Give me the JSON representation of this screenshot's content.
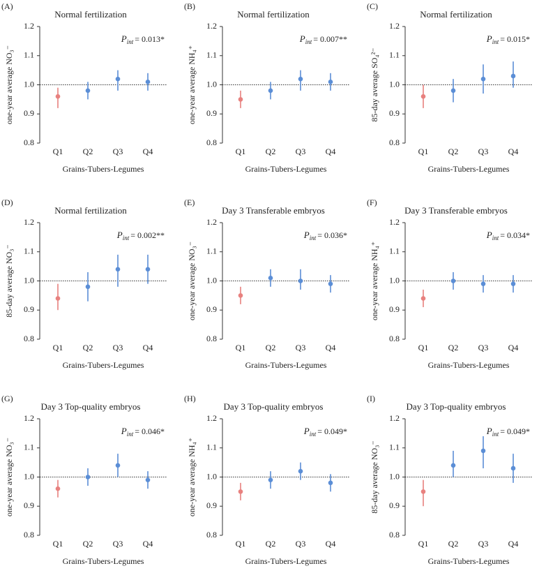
{
  "chart_data": [
    {
      "type": "errorbar",
      "panel": "(A)",
      "title": "Normal fertilization",
      "ylabel": "one-year average NO₃⁻",
      "xlabel": "Grains-Tubers-Legumes",
      "annotation": {
        "symbol": "P",
        "subscript": "int",
        "text": "= 0.013*"
      },
      "categories": [
        "Q1",
        "Q2",
        "Q3",
        "Q4"
      ],
      "values": [
        0.96,
        0.98,
        1.02,
        1.01
      ],
      "ci_low": [
        0.92,
        0.95,
        0.98,
        0.98
      ],
      "ci_high": [
        0.99,
        1.01,
        1.05,
        1.04
      ],
      "colors": [
        "#e8817f",
        "#5b8ed6",
        "#5b8ed6",
        "#5b8ed6"
      ],
      "ylim": [
        0.8,
        1.2
      ],
      "yticks": [
        0.8,
        0.9,
        {
          "value": 1,
          "label": "1.0"
        },
        1.1,
        1.2
      ],
      "ref_line": 1
    },
    {
      "type": "errorbar",
      "panel": "(B)",
      "title": "Normal fertilization",
      "ylabel": "one-year average NH₄⁺",
      "xlabel": "Grains-Tubers-Legumes",
      "annotation": {
        "symbol": "P",
        "subscript": "int",
        "text": "= 0.007**"
      },
      "categories": [
        "Q1",
        "Q2",
        "Q3",
        "Q4"
      ],
      "values": [
        0.95,
        0.98,
        1.02,
        1.01
      ],
      "ci_low": [
        0.92,
        0.95,
        0.98,
        0.98
      ],
      "ci_high": [
        0.98,
        1.01,
        1.05,
        1.04
      ],
      "colors": [
        "#e8817f",
        "#5b8ed6",
        "#5b8ed6",
        "#5b8ed6"
      ],
      "ylim": [
        0.8,
        1.2
      ],
      "yticks": [
        0.8,
        0.9,
        {
          "value": 1,
          "label": "1.0"
        },
        1.1,
        1.2
      ],
      "ref_line": 1
    },
    {
      "type": "errorbar",
      "panel": "(C)",
      "title": "Normal fertilization",
      "ylabel": "85-day average SO₄²⁻",
      "xlabel": "Grains-Tubers-Legumes",
      "annotation": {
        "symbol": "P",
        "subscript": "int",
        "text": "= 0.015*"
      },
      "categories": [
        "Q1",
        "Q2",
        "Q3",
        "Q4"
      ],
      "values": [
        0.96,
        0.98,
        1.02,
        1.03
      ],
      "ci_low": [
        0.92,
        0.94,
        0.97,
        0.99
      ],
      "ci_high": [
        1.0,
        1.02,
        1.07,
        1.08
      ],
      "colors": [
        "#e8817f",
        "#5b8ed6",
        "#5b8ed6",
        "#5b8ed6"
      ],
      "ylim": [
        0.8,
        1.2
      ],
      "yticks": [
        0.8,
        0.9,
        {
          "value": 1,
          "label": "1.0"
        },
        1.1,
        1.2
      ],
      "ref_line": 1
    },
    {
      "type": "errorbar",
      "panel": "(D)",
      "title": "Normal fertilization",
      "ylabel": "85-day average NO₃⁻",
      "xlabel": "Grains-Tubers-Legumes",
      "annotation": {
        "symbol": "P",
        "subscript": "int",
        "text": "= 0.002**"
      },
      "categories": [
        "Q1",
        "Q2",
        "Q3",
        "Q4"
      ],
      "values": [
        0.94,
        0.98,
        1.04,
        1.04
      ],
      "ci_low": [
        0.9,
        0.93,
        0.98,
        0.99
      ],
      "ci_high": [
        0.99,
        1.03,
        1.09,
        1.09
      ],
      "colors": [
        "#e8817f",
        "#5b8ed6",
        "#5b8ed6",
        "#5b8ed6"
      ],
      "ylim": [
        0.8,
        1.2
      ],
      "yticks": [
        0.8,
        0.9,
        {
          "value": 1,
          "label": "1.0"
        },
        1.1,
        1.2
      ],
      "ref_line": 1
    },
    {
      "type": "errorbar",
      "panel": "(E)",
      "title": "Day 3 Transferable embryos",
      "ylabel": "one-year average NO₃⁻",
      "xlabel": "Grains-Tubers-Legumes",
      "annotation": {
        "symbol": "P",
        "subscript": "int",
        "text": "= 0.036*"
      },
      "categories": [
        "Q1",
        "Q2",
        "Q3",
        "Q4"
      ],
      "values": [
        0.95,
        1.01,
        1.0,
        0.99
      ],
      "ci_low": [
        0.92,
        0.98,
        0.97,
        0.96
      ],
      "ci_high": [
        0.98,
        1.04,
        1.04,
        1.02
      ],
      "colors": [
        "#e8817f",
        "#5b8ed6",
        "#5b8ed6",
        "#5b8ed6"
      ],
      "ylim": [
        0.8,
        1.2
      ],
      "yticks": [
        0.8,
        0.9,
        {
          "value": 1,
          "label": "1.0"
        },
        1.1,
        1.2
      ],
      "ref_line": 1
    },
    {
      "type": "errorbar",
      "panel": "(F)",
      "title": "Day 3 Transferable embryos",
      "ylabel": "one-year average NH₄⁺",
      "xlabel": "Grains-Tubers-Legumes",
      "annotation": {
        "symbol": "P",
        "subscript": "int",
        "text": "= 0.034*"
      },
      "categories": [
        "Q1",
        "Q2",
        "Q3",
        "Q4"
      ],
      "values": [
        0.94,
        1.0,
        0.99,
        0.99
      ],
      "ci_low": [
        0.91,
        0.97,
        0.96,
        0.96
      ],
      "ci_high": [
        0.97,
        1.03,
        1.02,
        1.02
      ],
      "colors": [
        "#e8817f",
        "#5b8ed6",
        "#5b8ed6",
        "#5b8ed6"
      ],
      "ylim": [
        0.8,
        1.2
      ],
      "yticks": [
        0.8,
        0.9,
        {
          "value": 1,
          "label": "1.0"
        },
        1.1,
        1.2
      ],
      "ref_line": 1
    },
    {
      "type": "errorbar",
      "panel": "(G)",
      "title": "Day 3 Top-quality embryos",
      "ylabel": "one-year average NO₃⁻",
      "xlabel": "Grains-Tubers-Legumes",
      "annotation": {
        "symbol": "P",
        "subscript": "int",
        "text": "= 0.046*"
      },
      "categories": [
        "Q1",
        "Q2",
        "Q3",
        "Q4"
      ],
      "values": [
        0.96,
        1.0,
        1.04,
        0.99
      ],
      "ci_low": [
        0.93,
        0.97,
        1.0,
        0.96
      ],
      "ci_high": [
        0.99,
        1.03,
        1.08,
        1.02
      ],
      "colors": [
        "#e8817f",
        "#5b8ed6",
        "#5b8ed6",
        "#5b8ed6"
      ],
      "ylim": [
        0.8,
        1.2
      ],
      "yticks": [
        0.8,
        0.9,
        {
          "value": 1,
          "label": "1.0"
        },
        1.1,
        1.2
      ],
      "ref_line": 1
    },
    {
      "type": "errorbar",
      "panel": "(H)",
      "title": "Day 3 Top-quality embryos",
      "ylabel": "one-year average NH₄⁺",
      "xlabel": "Grains-Tubers-Legumes",
      "annotation": {
        "symbol": "P",
        "subscript": "int",
        "text": "= 0.049*"
      },
      "categories": [
        "Q1",
        "Q2",
        "Q3",
        "Q4"
      ],
      "values": [
        0.95,
        0.99,
        1.02,
        0.98
      ],
      "ci_low": [
        0.92,
        0.96,
        0.99,
        0.95
      ],
      "ci_high": [
        0.98,
        1.02,
        1.05,
        1.01
      ],
      "colors": [
        "#e8817f",
        "#5b8ed6",
        "#5b8ed6",
        "#5b8ed6"
      ],
      "ylim": [
        0.8,
        1.2
      ],
      "yticks": [
        0.8,
        0.9,
        {
          "value": 1,
          "label": "1.0"
        },
        1.1,
        1.2
      ],
      "ref_line": 1
    },
    {
      "type": "errorbar",
      "panel": "(I)",
      "title": "Day 3 Top-quality embryos",
      "ylabel": "85-day average NO₃⁻",
      "xlabel": "Grains-Tubers-Legumes",
      "annotation": {
        "symbol": "P",
        "subscript": "int",
        "text": "= 0.049*"
      },
      "categories": [
        "Q1",
        "Q2",
        "Q3",
        "Q4"
      ],
      "values": [
        0.95,
        1.04,
        1.09,
        1.03
      ],
      "ci_low": [
        0.9,
        1.0,
        1.03,
        0.98
      ],
      "ci_high": [
        0.99,
        1.09,
        1.14,
        1.08
      ],
      "colors": [
        "#e8817f",
        "#5b8ed6",
        "#5b8ed6",
        "#5b8ed6"
      ],
      "ylim": [
        0.8,
        1.2
      ],
      "yticks": [
        0.8,
        0.9,
        {
          "value": 1,
          "label": "1.0"
        },
        1.1,
        1.2
      ],
      "ref_line": 1
    }
  ]
}
